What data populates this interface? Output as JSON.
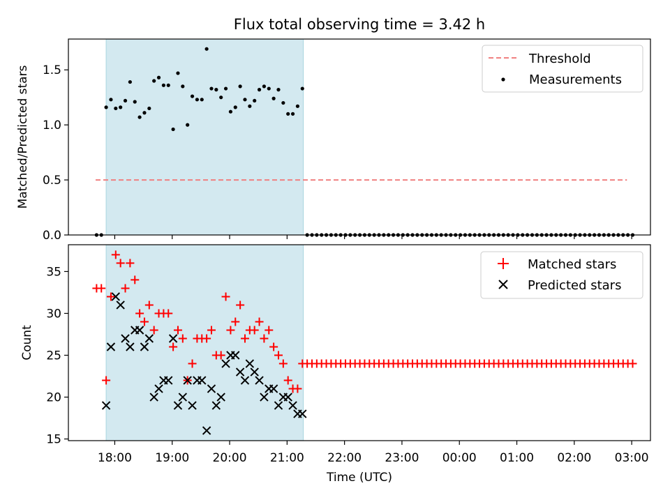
{
  "chart_data": [
    {
      "type": "scatter",
      "title": "Flux total observing time = 3.42 h",
      "xlabel": "",
      "ylabel": "Matched/Predicted stars",
      "ylim": [
        0,
        1.78
      ],
      "yticks": [
        "0.0",
        "0.5",
        "1.0",
        "1.5"
      ],
      "shaded_interval": [
        "17:51",
        "21:17"
      ],
      "shade_color": "#d3e9f0",
      "threshold": {
        "name": "Threshold",
        "value": 0.5,
        "x_start": "17:40",
        "x_end": "02:55",
        "color": "#f08080"
      },
      "legend": {
        "placement": "top-right",
        "entries": [
          "Threshold",
          "Measurements"
        ]
      },
      "series": [
        {
          "name": "Measurements",
          "color": "#000000",
          "marker": "dot",
          "x": [
            "17:41",
            "17:46",
            "17:51",
            "17:56",
            "18:01",
            "18:06",
            "18:11",
            "18:16",
            "18:21",
            "18:26",
            "18:31",
            "18:36",
            "18:41",
            "18:46",
            "18:51",
            "18:56",
            "19:01",
            "19:06",
            "19:11",
            "19:16",
            "19:21",
            "19:26",
            "19:31",
            "19:36",
            "19:41",
            "19:46",
            "19:51",
            "19:56",
            "20:01",
            "20:06",
            "20:11",
            "20:16",
            "20:21",
            "20:26",
            "20:31",
            "20:36",
            "20:41",
            "20:46",
            "20:51",
            "20:56",
            "21:01",
            "21:06",
            "21:11",
            "21:16"
          ],
          "y": [
            0,
            0,
            1.16,
            1.23,
            1.15,
            1.16,
            1.22,
            1.39,
            1.21,
            1.07,
            1.11,
            1.15,
            1.4,
            1.43,
            1.36,
            1.36,
            0.96,
            1.47,
            1.35,
            1.0,
            1.26,
            1.23,
            1.23,
            1.69,
            1.33,
            1.32,
            1.25,
            1.33,
            1.12,
            1.16,
            1.35,
            1.23,
            1.17,
            1.22,
            1.32,
            1.35,
            1.33,
            1.24,
            1.32,
            1.2,
            1.1,
            1.1,
            1.17,
            1.33
          ]
        },
        {
          "name": "",
          "color": "#000000",
          "marker": "dot",
          "x_start": "21:21",
          "x_step_minutes": 5,
          "count": 69,
          "y_constant": 0
        }
      ]
    },
    {
      "type": "scatter",
      "title": "",
      "xlabel": "Time (UTC)",
      "ylabel": "Count",
      "ylim": [
        14.8,
        38.2
      ],
      "yticks": [
        "15",
        "20",
        "25",
        "30",
        "35"
      ],
      "xticks": [
        "18:00",
        "19:00",
        "20:00",
        "21:00",
        "22:00",
        "23:00",
        "00:00",
        "01:00",
        "02:00",
        "03:00"
      ],
      "shaded_interval": [
        "17:51",
        "21:17"
      ],
      "shade_color": "#d3e9f0",
      "legend": {
        "placement": "top-right",
        "entries": [
          "Matched stars",
          "Predicted stars"
        ]
      },
      "series": [
        {
          "name": "Matched stars",
          "color": "#ff0000",
          "marker": "plus",
          "x": [
            "17:41",
            "17:46",
            "17:51",
            "17:56",
            "18:01",
            "18:06",
            "18:11",
            "18:16",
            "18:21",
            "18:26",
            "18:31",
            "18:36",
            "18:41",
            "18:46",
            "18:51",
            "18:56",
            "19:01",
            "19:06",
            "19:11",
            "19:16",
            "19:21",
            "19:26",
            "19:31",
            "19:36",
            "19:41",
            "19:46",
            "19:51",
            "19:56",
            "20:01",
            "20:06",
            "20:11",
            "20:16",
            "20:21",
            "20:26",
            "20:31",
            "20:36",
            "20:41",
            "20:46",
            "20:51",
            "20:56",
            "21:01",
            "21:06",
            "21:11",
            "21:16"
          ],
          "y": [
            33,
            33,
            22,
            32,
            37,
            36,
            33,
            36,
            34,
            30,
            29,
            31,
            28,
            30,
            30,
            30,
            26,
            28,
            27,
            22,
            24,
            27,
            27,
            27,
            28,
            25,
            25,
            32,
            28,
            29,
            31,
            27,
            28,
            28,
            29,
            27,
            28,
            26,
            25,
            24,
            22,
            21,
            21,
            24
          ]
        },
        {
          "name": "",
          "color": "#ff0000",
          "marker": "plus",
          "x_start": "21:21",
          "x_step_minutes": 5,
          "count": 69,
          "y_constant": 24
        },
        {
          "name": "Predicted stars",
          "color": "#000000",
          "marker": "x",
          "x": [
            "17:51",
            "17:56",
            "18:01",
            "18:06",
            "18:11",
            "18:16",
            "18:21",
            "18:26",
            "18:31",
            "18:36",
            "18:41",
            "18:46",
            "18:51",
            "18:56",
            "19:01",
            "19:06",
            "19:11",
            "19:16",
            "19:21",
            "19:26",
            "19:31",
            "19:36",
            "19:41",
            "19:46",
            "19:51",
            "19:56",
            "20:01",
            "20:06",
            "20:11",
            "20:16",
            "20:21",
            "20:26",
            "20:31",
            "20:36",
            "20:41",
            "20:46",
            "20:51",
            "20:56",
            "21:01",
            "21:06",
            "21:11",
            "21:16"
          ],
          "y": [
            19,
            26,
            32,
            31,
            27,
            26,
            28,
            28,
            26,
            27,
            20,
            21,
            22,
            22,
            27,
            19,
            20,
            22,
            19,
            22,
            22,
            16,
            21,
            19,
            20,
            24,
            25,
            25,
            23,
            22,
            24,
            23,
            22,
            20,
            21,
            21,
            19,
            20,
            20,
            19,
            18,
            18
          ]
        }
      ]
    }
  ]
}
